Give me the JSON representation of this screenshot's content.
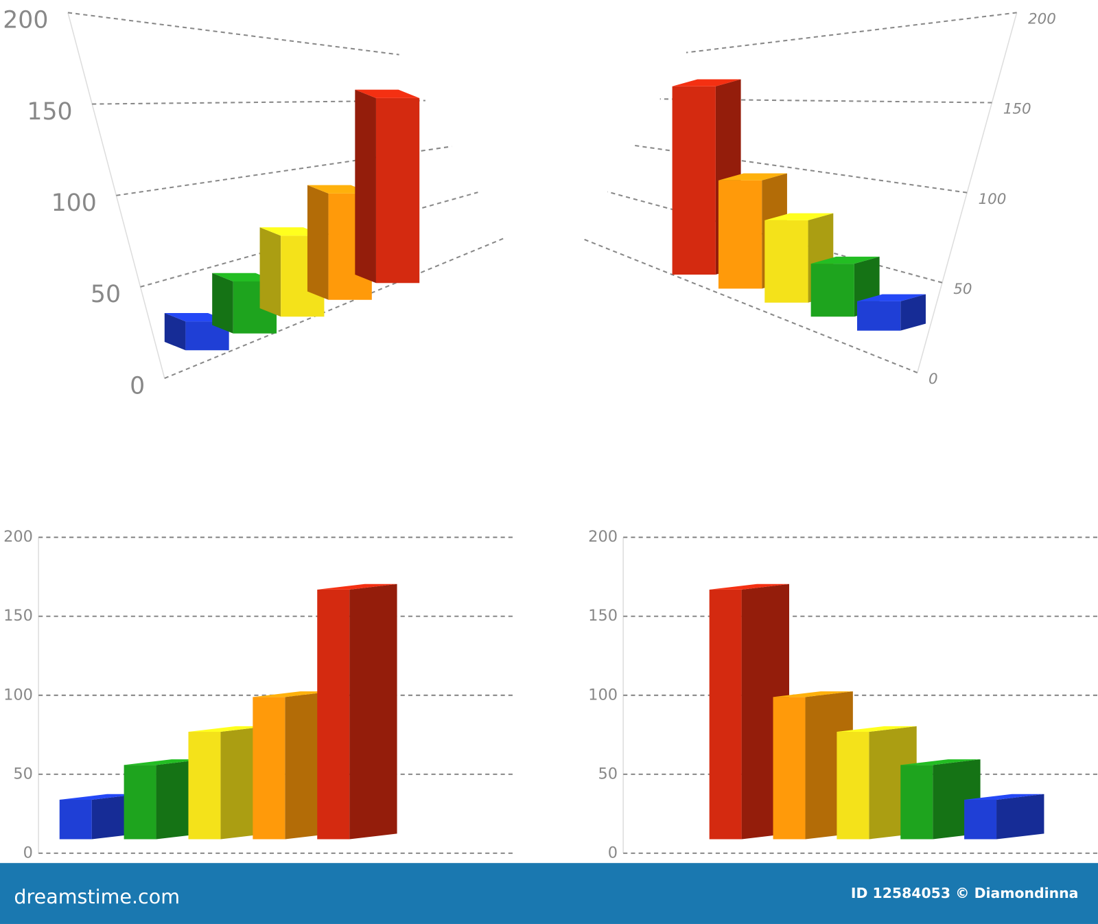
{
  "chart_data": [
    {
      "type": "bar",
      "categories": [
        null,
        null,
        null,
        null,
        null
      ],
      "values": [
        25,
        45,
        70,
        92,
        160
      ],
      "colors": [
        "#1f3fd6",
        "#1ea41e",
        "#f4e21a",
        "#ff9a0a",
        "#d42a10"
      ],
      "ylim": [
        0,
        200
      ],
      "yticks": [
        0,
        50,
        100,
        150,
        200
      ],
      "grid": true
    },
    {
      "type": "bar",
      "categories": [
        null,
        null,
        null,
        null,
        null
      ],
      "values": [
        160,
        92,
        70,
        45,
        25
      ],
      "colors": [
        "#d42a10",
        "#ff9a0a",
        "#f4e21a",
        "#1ea41e",
        "#1f3fd6"
      ],
      "ylim": [
        0,
        200
      ],
      "yticks": [
        0,
        50,
        100,
        150,
        200
      ],
      "grid": true
    },
    {
      "type": "bar",
      "categories": [
        null,
        null,
        null,
        null,
        null
      ],
      "values": [
        25,
        47,
        68,
        90,
        158
      ],
      "colors": [
        "#1f3fd6",
        "#1ea41e",
        "#f4e21a",
        "#ff9a0a",
        "#d42a10"
      ],
      "ylim": [
        0,
        200
      ],
      "yticks": [
        0,
        50,
        100,
        150,
        200
      ],
      "grid": true
    },
    {
      "type": "bar",
      "categories": [
        null,
        null,
        null,
        null,
        null
      ],
      "values": [
        158,
        90,
        68,
        47,
        25
      ],
      "colors": [
        "#d42a10",
        "#ff9a0a",
        "#f4e21a",
        "#1ea41e",
        "#1f3fd6"
      ],
      "ylim": [
        0,
        200
      ],
      "yticks": [
        0,
        50,
        100,
        150,
        200
      ],
      "grid": true
    }
  ],
  "footer": {
    "logo": "dreamstime.com",
    "credit": "ID 12584053 © Diamondinna"
  }
}
